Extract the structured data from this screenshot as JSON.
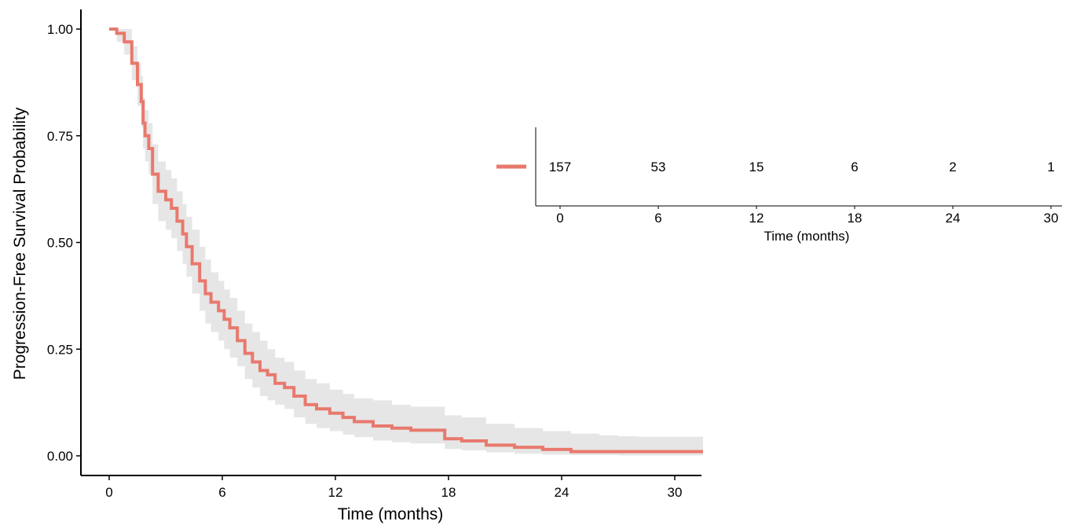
{
  "chart_data": [
    {
      "type": "line",
      "subtype": "kaplan-meier",
      "title": "",
      "xlabel": "Time (months)",
      "ylabel": "Progression-Free Survival Probability",
      "xlim": [
        0,
        31.5
      ],
      "ylim": [
        0,
        1
      ],
      "x_ticks": [
        "0",
        "6",
        "12",
        "18",
        "24",
        "30"
      ],
      "y_ticks": [
        "0.00",
        "0.25",
        "0.50",
        "0.75",
        "1.00"
      ],
      "grid": false,
      "colors": {
        "line": "#e8796d",
        "band": "#e6e6e6"
      },
      "series": [
        {
          "x": [
            0,
            0.4,
            0.8,
            1.2,
            1.5,
            1.7,
            1.8,
            1.9,
            2.1,
            2.3,
            2.6,
            3.0,
            3.3,
            3.6,
            3.9,
            4.1,
            4.4,
            4.8,
            5.1,
            5.4,
            5.8,
            6.1,
            6.4,
            6.8,
            7.2,
            7.6,
            8.0,
            8.4,
            8.8,
            9.3,
            9.8,
            10.4,
            11.0,
            11.7,
            12.4,
            13.0,
            14.0,
            15.0,
            16.0,
            17.0,
            17.8,
            18.7,
            20.0,
            21.5,
            23.0,
            24.5,
            26.0,
            27.0,
            28.0,
            31.5
          ],
          "y": [
            1.0,
            0.99,
            0.97,
            0.92,
            0.87,
            0.83,
            0.78,
            0.75,
            0.72,
            0.66,
            0.62,
            0.6,
            0.58,
            0.55,
            0.52,
            0.49,
            0.45,
            0.41,
            0.38,
            0.36,
            0.34,
            0.32,
            0.3,
            0.27,
            0.24,
            0.22,
            0.2,
            0.19,
            0.17,
            0.16,
            0.14,
            0.12,
            0.11,
            0.1,
            0.09,
            0.08,
            0.07,
            0.065,
            0.06,
            0.06,
            0.04,
            0.035,
            0.025,
            0.02,
            0.015,
            0.01,
            0.01,
            0.01,
            0.01,
            0.01
          ],
          "lower": [
            1.0,
            0.97,
            0.94,
            0.88,
            0.82,
            0.77,
            0.72,
            0.69,
            0.66,
            0.59,
            0.55,
            0.53,
            0.51,
            0.48,
            0.45,
            0.42,
            0.38,
            0.34,
            0.31,
            0.29,
            0.27,
            0.25,
            0.23,
            0.21,
            0.18,
            0.16,
            0.14,
            0.13,
            0.12,
            0.11,
            0.09,
            0.075,
            0.065,
            0.058,
            0.05,
            0.044,
            0.036,
            0.032,
            0.029,
            0.029,
            0.016,
            0.013,
            0.008,
            0.005,
            0.003,
            0.002,
            0.002,
            0.001,
            0.001,
            0.001
          ],
          "upper": [
            1.0,
            1.0,
            1.0,
            0.96,
            0.92,
            0.89,
            0.84,
            0.81,
            0.78,
            0.73,
            0.69,
            0.67,
            0.65,
            0.62,
            0.59,
            0.56,
            0.53,
            0.49,
            0.46,
            0.43,
            0.41,
            0.39,
            0.37,
            0.34,
            0.31,
            0.29,
            0.27,
            0.25,
            0.23,
            0.22,
            0.2,
            0.18,
            0.17,
            0.155,
            0.145,
            0.135,
            0.13,
            0.12,
            0.115,
            0.115,
            0.095,
            0.09,
            0.075,
            0.065,
            0.058,
            0.052,
            0.048,
            0.046,
            0.045,
            0.045
          ]
        }
      ]
    },
    {
      "type": "table",
      "subtype": "risk-table",
      "xlabel": "Time (months)",
      "x_ticks": [
        "0",
        "6",
        "12",
        "18",
        "24",
        "30"
      ],
      "xlim": [
        0,
        30
      ],
      "values": [
        "157",
        "53",
        "15",
        "6",
        "2",
        "1"
      ],
      "legend_color": "#e8796d"
    }
  ]
}
